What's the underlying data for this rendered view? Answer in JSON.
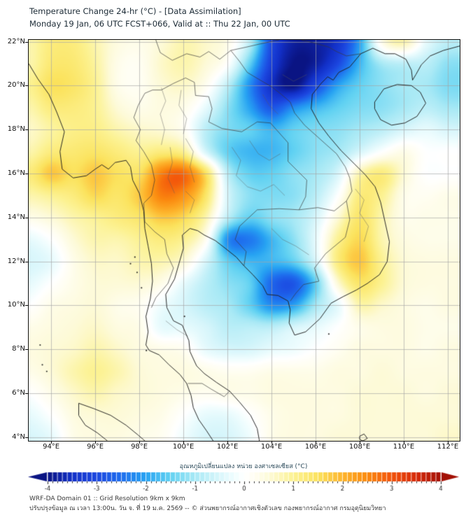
{
  "header": {
    "line1": "Temperature Change 24-hr (°C) - [Data Assimilation]",
    "line2": "Monday 19 Jan, 06 UTC FCST+066, Valid at :: Thu 22 Jan, 00 UTC"
  },
  "map": {
    "type": "heatmap",
    "extent": {
      "lon_min": 92.98,
      "lon_max": 112.54,
      "lat_min": 3.84,
      "lat_max": 22.08
    },
    "lat_tick_labels": [
      "22°N",
      "20°N",
      "18°N",
      "16°N",
      "14°N",
      "12°N",
      "10°N",
      "8°N",
      "6°N",
      "4°N"
    ],
    "lat_tick_values": [
      22,
      20,
      18,
      16,
      14,
      12,
      10,
      8,
      6,
      4
    ],
    "lon_tick_labels": [
      "94°E",
      "96°E",
      "98°E",
      "100°E",
      "102°E",
      "104°E",
      "106°E",
      "108°E",
      "110°E",
      "112°E"
    ],
    "lon_tick_values": [
      94,
      96,
      98,
      100,
      102,
      104,
      106,
      108,
      110,
      112
    ],
    "field": {
      "units": "°C",
      "lons": [
        93,
        94,
        95,
        96,
        97,
        98,
        99,
        100,
        101,
        102,
        103,
        104,
        105,
        106,
        107,
        108,
        109,
        110,
        111,
        112,
        113
      ],
      "lats": [
        22,
        21,
        20,
        19,
        18,
        17,
        16,
        15,
        14,
        13,
        12,
        11,
        10,
        9,
        8,
        7,
        6,
        5,
        4
      ],
      "values": [
        [
          0.8,
          1.2,
          1.2,
          0.8,
          0.4,
          0.3,
          0.5,
          0.8,
          0.6,
          0.3,
          -0.8,
          -3.0,
          -3.8,
          -3.8,
          -3.4,
          -2.0,
          0.3,
          0.8,
          -0.3,
          -0.8,
          -0.8
        ],
        [
          0.8,
          1.3,
          1.3,
          0.9,
          0.3,
          0.2,
          0.6,
          0.8,
          0.5,
          0.0,
          -1.5,
          -3.2,
          -4.0,
          -3.8,
          -3.0,
          -1.8,
          -1.0,
          -0.8,
          -0.8,
          -1.2,
          -1.2
        ],
        [
          1.0,
          1.5,
          1.4,
          1.0,
          0.3,
          0.2,
          0.5,
          0.6,
          0.2,
          -0.8,
          -2.2,
          -3.5,
          -4.0,
          -3.0,
          -2.0,
          -1.5,
          -1.2,
          -1.0,
          -1.0,
          -1.3,
          -1.3
        ],
        [
          0.8,
          1.2,
          1.2,
          1.0,
          0.5,
          0.3,
          0.4,
          0.3,
          -0.3,
          -1.2,
          -2.0,
          -2.8,
          -2.2,
          -1.8,
          -1.5,
          -1.3,
          -1.2,
          -1.0,
          -0.8,
          -1.0,
          -1.0
        ],
        [
          0.6,
          0.9,
          1.1,
          1.1,
          0.8,
          0.6,
          0.5,
          0.2,
          -0.8,
          -1.3,
          -1.5,
          -1.8,
          -1.5,
          -1.3,
          -1.2,
          -1.0,
          -0.8,
          -0.5,
          -0.3,
          -0.5,
          -0.5
        ],
        [
          0.8,
          1.2,
          1.3,
          1.4,
          1.2,
          1.0,
          1.2,
          1.0,
          -0.5,
          -1.5,
          -1.8,
          -1.8,
          -1.5,
          -1.2,
          -1.0,
          -0.5,
          0.0,
          0.3,
          0.0,
          0.0,
          0.0
        ],
        [
          1.2,
          1.8,
          1.5,
          1.8,
          1.5,
          1.5,
          2.6,
          2.8,
          1.5,
          -0.8,
          -1.5,
          -1.5,
          -1.2,
          -1.0,
          -0.5,
          0.8,
          1.2,
          0.5,
          0.0,
          0.0,
          0.0
        ],
        [
          0.8,
          1.0,
          1.2,
          1.6,
          1.4,
          1.8,
          2.6,
          2.4,
          1.4,
          -0.5,
          -1.2,
          -1.3,
          -1.2,
          -0.8,
          0.0,
          1.2,
          1.0,
          0.3,
          0.2,
          0.3,
          0.3
        ],
        [
          0.3,
          0.5,
          0.8,
          1.0,
          1.2,
          1.4,
          1.8,
          1.6,
          0.8,
          -0.8,
          -1.5,
          -1.2,
          -1.0,
          -0.5,
          0.5,
          1.4,
          0.8,
          0.3,
          0.3,
          0.3,
          0.3
        ],
        [
          -0.3,
          0.0,
          0.5,
          0.8,
          0.8,
          1.0,
          1.2,
          1.0,
          0.2,
          -2.2,
          -2.4,
          -1.8,
          -1.2,
          -0.3,
          1.0,
          1.6,
          0.8,
          0.4,
          0.3,
          0.3,
          0.3
        ],
        [
          -0.5,
          -0.3,
          0.3,
          0.6,
          0.6,
          0.8,
          0.8,
          0.5,
          -0.5,
          -1.5,
          -1.8,
          -1.8,
          -1.5,
          -0.5,
          1.2,
          1.8,
          1.0,
          0.5,
          0.4,
          0.4,
          0.4
        ],
        [
          -0.3,
          0.0,
          0.3,
          0.5,
          0.5,
          0.5,
          0.3,
          -0.3,
          -0.8,
          -1.2,
          -1.5,
          -2.6,
          -2.8,
          -1.5,
          0.5,
          1.4,
          1.0,
          0.5,
          0.4,
          0.4,
          0.4
        ],
        [
          0.0,
          0.3,
          0.4,
          0.5,
          0.3,
          0.2,
          -0.2,
          -0.5,
          -0.8,
          -1.0,
          -1.5,
          -2.2,
          -2.0,
          -1.0,
          -0.3,
          0.8,
          0.6,
          0.4,
          0.3,
          0.4,
          0.4
        ],
        [
          0.3,
          0.4,
          0.5,
          0.6,
          0.4,
          0.3,
          -0.3,
          -0.3,
          -0.5,
          -0.8,
          -0.8,
          -0.8,
          -0.5,
          -0.3,
          0.0,
          0.3,
          0.4,
          0.4,
          0.3,
          0.3,
          0.3
        ],
        [
          0.4,
          0.5,
          0.6,
          0.8,
          0.6,
          0.4,
          0.3,
          0.2,
          -0.3,
          -0.5,
          -0.5,
          -0.3,
          -0.2,
          0.0,
          0.2,
          0.4,
          0.4,
          0.4,
          0.3,
          0.4,
          0.4
        ],
        [
          0.3,
          0.5,
          0.8,
          1.0,
          0.8,
          0.5,
          0.4,
          0.4,
          0.3,
          0.2,
          0.2,
          0.3,
          0.3,
          0.3,
          0.4,
          0.4,
          0.5,
          0.4,
          0.4,
          0.4,
          0.4
        ],
        [
          0.0,
          0.3,
          0.6,
          0.8,
          0.6,
          0.5,
          0.4,
          0.3,
          0.2,
          0.3,
          0.3,
          0.4,
          0.4,
          0.4,
          0.4,
          0.5,
          0.5,
          0.5,
          0.4,
          0.5,
          0.5
        ],
        [
          -0.3,
          0.0,
          0.4,
          0.5,
          0.5,
          0.4,
          0.3,
          0.0,
          -0.3,
          -0.3,
          0.0,
          0.3,
          0.4,
          0.4,
          0.4,
          0.5,
          0.5,
          0.5,
          0.5,
          0.5,
          0.5
        ],
        [
          -0.5,
          -0.3,
          0.3,
          0.4,
          0.4,
          0.3,
          0.2,
          -0.2,
          -0.5,
          -0.5,
          -0.2,
          0.3,
          0.4,
          0.4,
          0.5,
          0.5,
          0.5,
          0.5,
          0.5,
          0.6,
          0.6
        ]
      ]
    }
  },
  "colorbar": {
    "title": "อุณหภูมิเปลี่ยนแปลง หน่วย องศาเซลเซียส (°C)",
    "tick_labels": [
      "-4",
      "-3",
      "-2",
      "-1",
      "0",
      "1",
      "2",
      "3",
      "4"
    ],
    "tick_values": [
      -4,
      -3,
      -2,
      -1,
      0,
      1,
      2,
      3,
      4
    ],
    "min": -4,
    "max": 4,
    "step": 0.1,
    "stops": [
      [
        -4.0,
        "#0a1483"
      ],
      [
        -3.5,
        "#1230c8"
      ],
      [
        -3.0,
        "#1c47e0"
      ],
      [
        -2.5,
        "#1e6eee"
      ],
      [
        -2.0,
        "#27a3f2"
      ],
      [
        -1.5,
        "#62d2f2"
      ],
      [
        -1.0,
        "#a8e9f5"
      ],
      [
        -0.5,
        "#d8f6fb"
      ],
      [
        -0.2,
        "#effdfe"
      ],
      [
        0.0,
        "#ffffff"
      ],
      [
        0.2,
        "#fffef2"
      ],
      [
        0.5,
        "#fdfad8"
      ],
      [
        1.0,
        "#fcf292"
      ],
      [
        1.5,
        "#fbe35e"
      ],
      [
        2.0,
        "#fdb42c"
      ],
      [
        2.5,
        "#fb8b10"
      ],
      [
        3.0,
        "#f2520a"
      ],
      [
        3.5,
        "#d62a08"
      ],
      [
        4.0,
        "#a31005"
      ]
    ]
  },
  "footer": {
    "line1": "WRF-DA Domain 01 :: Grid Resolution 9km x 9km",
    "line2": "ปรับปรุงข้อมูล ณ เวลา 13:00น. วัน จ. ที่ 19 ม.ค. 2569 -- © ส่วนพยากรณ์อากาศเชิงตัวเลข กองพยากรณ์อากาศ กรมอุตุนิยมวิทยา"
  }
}
